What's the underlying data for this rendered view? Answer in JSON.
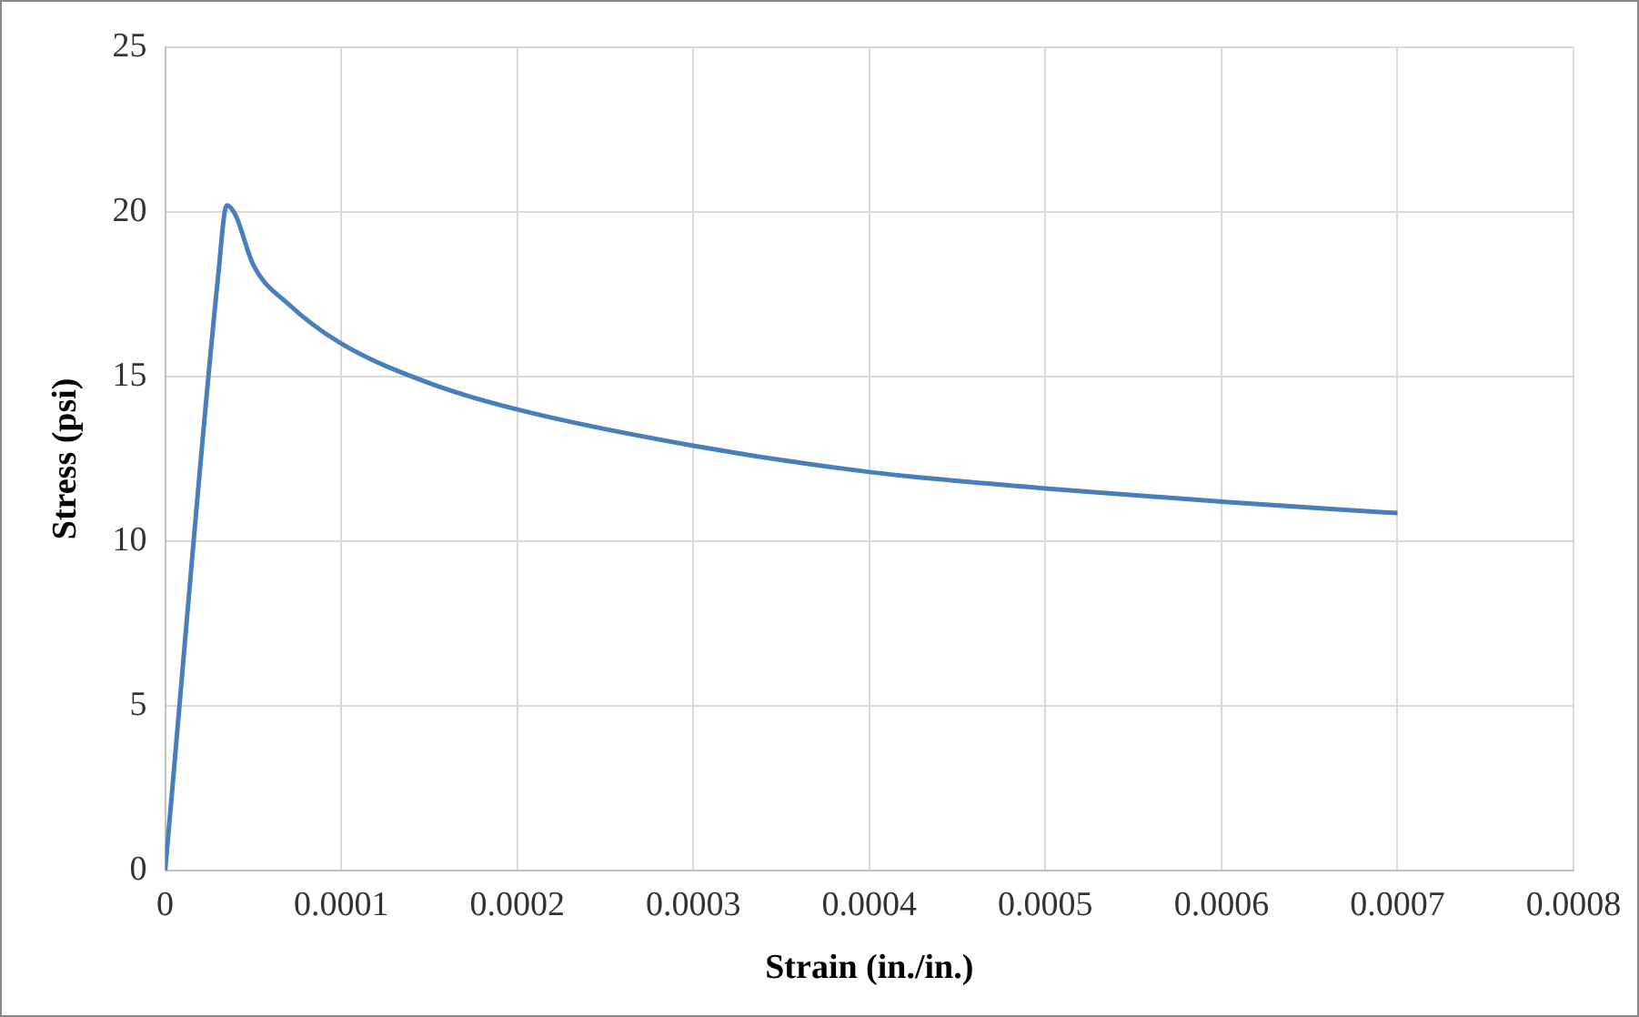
{
  "chart_data": {
    "type": "line",
    "xlabel": "Strain (in./in.)",
    "ylabel": "Stress (psi)",
    "x": [
      0,
      3e-05,
      3.5e-05,
      4e-05,
      5e-05,
      7e-05,
      0.0001,
      0.00015,
      0.0002,
      0.0003,
      0.0004,
      0.0005,
      0.0006,
      0.0007
    ],
    "series": [
      {
        "color": "#4a7ebb",
        "values": [
          0,
          18.0,
          20.2,
          19.9,
          18.4,
          17.2,
          16.0,
          14.8,
          14.0,
          12.9,
          12.1,
          11.6,
          11.2,
          10.85
        ]
      }
    ],
    "xlim": [
      0,
      0.0008
    ],
    "xticks": [
      0,
      0.0001,
      0.0002,
      0.0003,
      0.0004,
      0.0005,
      0.0006,
      0.0007,
      0.0008
    ],
    "ylim": [
      0,
      25
    ],
    "yticks": [
      0,
      5,
      10,
      15,
      20,
      25
    ],
    "grid": true,
    "legend": false,
    "marker": "none",
    "line_style": "solid"
  }
}
